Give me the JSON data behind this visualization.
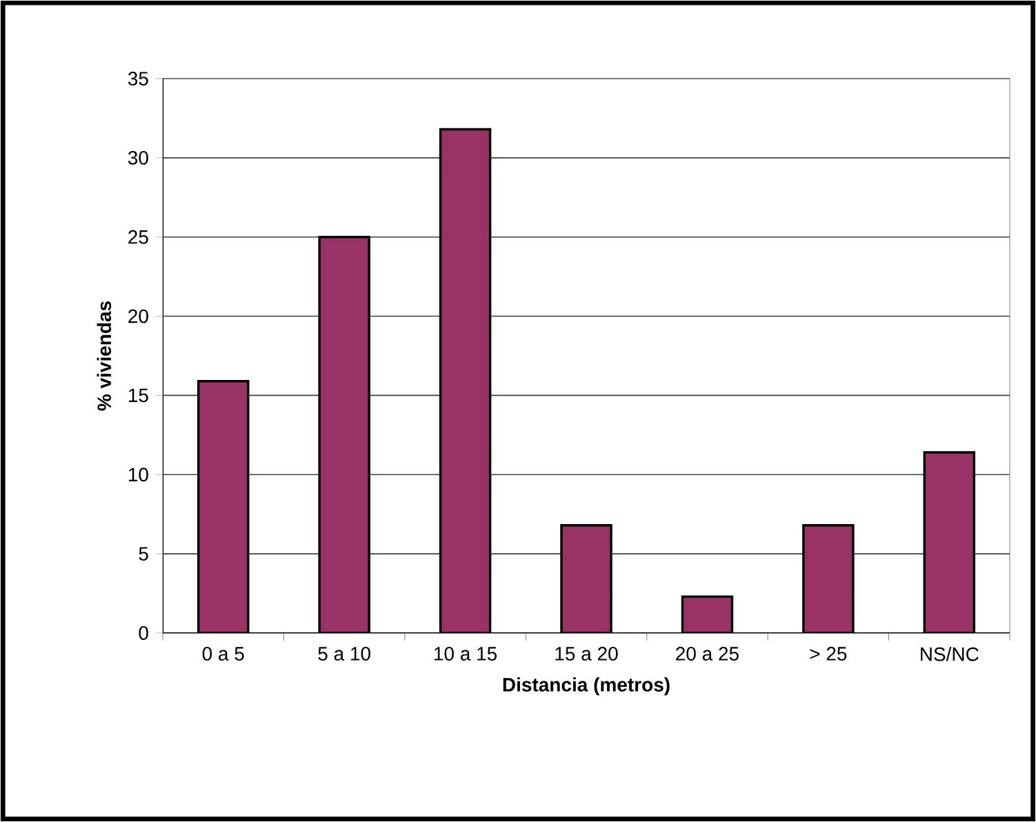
{
  "chart_data": {
    "type": "bar",
    "xlabel": "Distancia (metros)",
    "ylabel": "% viviendas",
    "categories": [
      "0 a 5",
      "5 a 10",
      "10 a 15",
      "15 a 20",
      "20 a 25",
      "> 25",
      "NS/NC"
    ],
    "values": [
      15.9,
      25,
      31.8,
      6.8,
      2.3,
      6.8,
      11.4
    ],
    "color": "#993366",
    "ylim": [
      0,
      35
    ],
    "yticks": [
      0,
      5,
      10,
      15,
      20,
      25,
      30,
      35
    ],
    "grid": "y"
  }
}
